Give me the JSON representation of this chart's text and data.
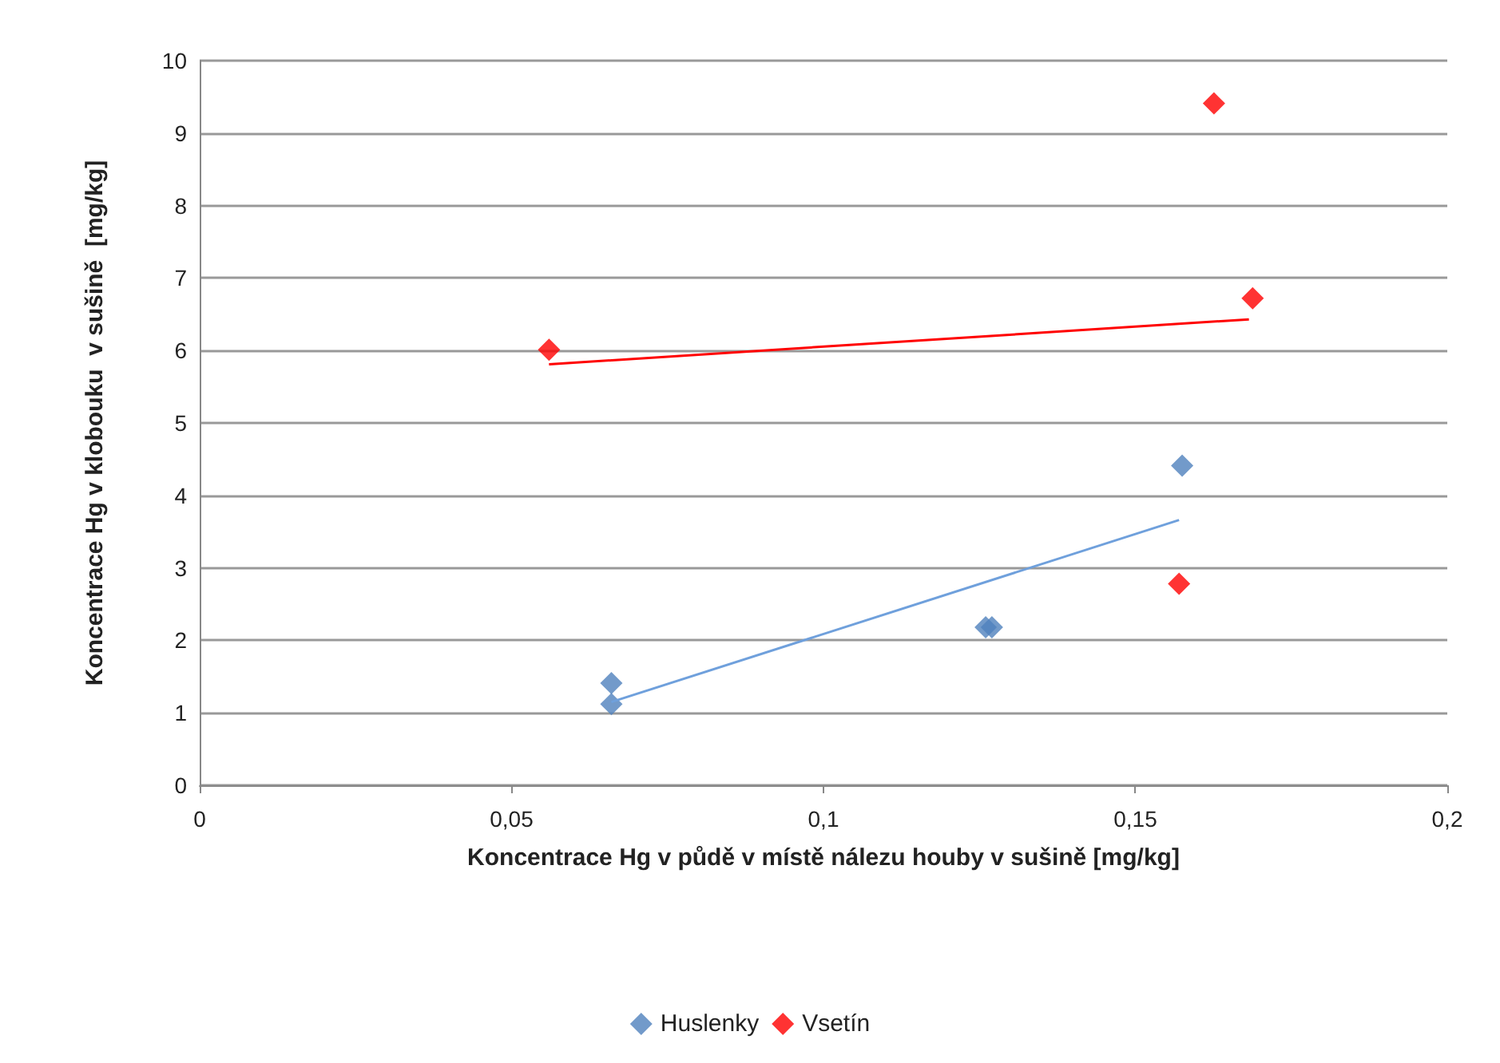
{
  "chart_data": {
    "type": "scatter",
    "xlabel": "Koncentrace Hg v půdě v místě nálezu houby v sušině [mg/kg]",
    "ylabel": "Koncentrace Hg v klobouku  v sušině  [mg/kg]",
    "xlim": [
      0,
      0.2
    ],
    "xticks": [
      0,
      {
        "value": 0.05,
        "label": "0,05"
      },
      {
        "value": 0.1,
        "label": "0,1"
      },
      {
        "value": 0.15,
        "label": "0,15"
      },
      {
        "value": 0.2,
        "label": "0,2"
      }
    ],
    "ylim": [
      0,
      10
    ],
    "yticks": [
      0,
      1,
      2,
      3,
      4,
      5,
      6,
      7,
      8,
      9,
      10
    ],
    "grid": "y",
    "legend": "bottom",
    "series": [
      {
        "name": "Huslenky",
        "color": "#4f81bd",
        "marker": "diamond",
        "x": [
          0.066,
          0.066,
          0.126,
          0.127,
          0.1575
        ],
        "values": [
          1.41,
          1.12,
          2.18,
          2.18,
          4.41
        ]
      },
      {
        "name": "Vsetín",
        "color": "#ff0000",
        "marker": "diamond",
        "x": [
          0.056,
          0.1626,
          0.1688,
          0.157
        ],
        "values": [
          6.01,
          9.41,
          6.72,
          2.78
        ]
      },
      {
        "type": "line",
        "color": "#6fa0dc",
        "line_style": "solid",
        "marker": "none",
        "x": [
          0.066,
          0.157
        ],
        "values": [
          1.15,
          3.66
        ]
      },
      {
        "type": "line",
        "color": "#ff0000",
        "line_style": "solid",
        "marker": "none",
        "x": [
          0.056,
          0.1682
        ],
        "values": [
          5.81,
          6.43
        ]
      }
    ]
  }
}
